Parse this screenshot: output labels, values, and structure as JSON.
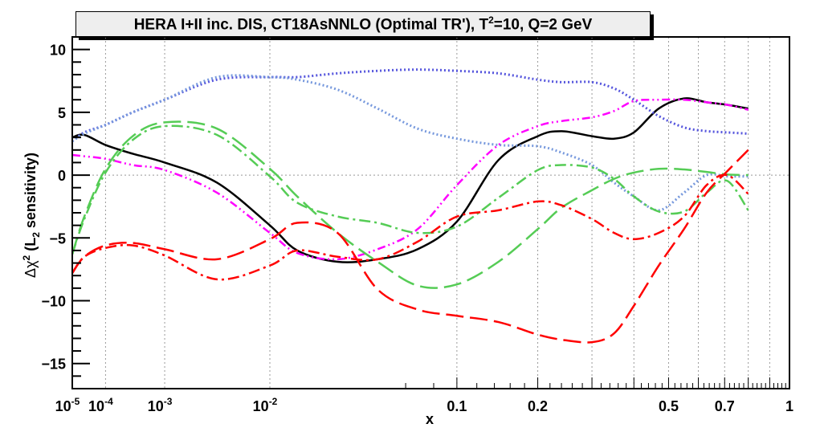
{
  "chart_data": {
    "type": "line",
    "title": "HERA I+II inc. DIS, CT18AsNNLO (Optimal TR'), T^2=10, Q=2 GeV",
    "title_parts": {
      "pre": "HERA I+II inc. DIS, CT18AsNNLO (Optimal TR'), T",
      "sup": "2",
      "post": "=10, Q=2 GeV"
    },
    "xlabel": "x",
    "ylabel": "Δχ² (L₂ sensitivity)",
    "ylabel_parts": {
      "delta_chi": "Δχ",
      "sup": "2",
      "paren": " (L",
      "sub": "2",
      "rest": " sensitivity)"
    },
    "x_scale": "x^0.25",
    "xlim": [
      1e-05,
      1
    ],
    "ylim": [
      -17,
      11
    ],
    "grid": true,
    "x_ticks": [
      {
        "value": 1e-05,
        "base": "10",
        "exp": "-5"
      },
      {
        "value": 0.0001,
        "base": "10",
        "exp": "-4"
      },
      {
        "value": 0.001,
        "base": "10",
        "exp": "-3"
      },
      {
        "value": 0.01,
        "base": "10",
        "exp": "-2"
      },
      {
        "value": 0.1,
        "label": "0.1"
      },
      {
        "value": 0.2,
        "label": "0.2"
      },
      {
        "value": 0.5,
        "label": "0.5"
      },
      {
        "value": 0.7,
        "label": "0.7"
      },
      {
        "value": 1,
        "label": "1"
      }
    ],
    "x_grid": [
      0.0001,
      0.001,
      0.01,
      0.1,
      0.2,
      0.3,
      0.4,
      0.5,
      0.6,
      0.7,
      0.8,
      0.9
    ],
    "y_ticks": [
      10,
      5,
      0,
      -5,
      -10,
      -15
    ],
    "y_tick_labels": [
      "10",
      "5",
      "0",
      "−5",
      "−10",
      "−15"
    ],
    "x": [
      1e-05,
      2.7e-05,
      0.0001,
      0.00034,
      0.001,
      0.0037,
      0.01,
      0.0154,
      0.027,
      0.044,
      0.068,
      0.1,
      0.145,
      0.2,
      0.24,
      0.3,
      0.35,
      0.4,
      0.47,
      0.55,
      0.63,
      0.71,
      0.8
    ],
    "series": [
      {
        "name": "black-solid",
        "color": "#000000",
        "style": "solid",
        "values": [
          3.0,
          3.2,
          2.4,
          1.7,
          1.0,
          -0.6,
          -4.0,
          -6.0,
          -6.9,
          -6.7,
          -5.9,
          -3.7,
          1.2,
          3.1,
          3.5,
          3.1,
          2.9,
          3.4,
          5.3,
          6.1,
          5.8,
          5.6,
          5.3
        ]
      },
      {
        "name": "blue-dotted-dark",
        "color": "#5555dd",
        "style": "dotted",
        "values": [
          2.7,
          3.4,
          4.0,
          5.0,
          6.0,
          7.6,
          7.8,
          7.8,
          8.1,
          8.3,
          8.4,
          8.3,
          8.1,
          7.6,
          7.4,
          7.4,
          6.9,
          6.0,
          4.7,
          3.8,
          3.5,
          3.4,
          3.3
        ]
      },
      {
        "name": "blue-dotted-light",
        "color": "#7799dd",
        "style": "dotted",
        "values": [
          2.7,
          3.3,
          4.0,
          5.0,
          6.0,
          7.8,
          7.8,
          7.6,
          6.8,
          5.3,
          3.7,
          2.9,
          2.4,
          2.3,
          1.8,
          0.8,
          -0.6,
          -1.7,
          -2.8,
          -1.4,
          0.0,
          -0.1,
          -0.1
        ]
      },
      {
        "name": "magenta-dash-dot-dot",
        "color": "#ff00ff",
        "style": "dashdotdot",
        "values": [
          1.6,
          1.5,
          1.3,
          0.8,
          0.4,
          -1.4,
          -4.6,
          -6.2,
          -6.7,
          -5.9,
          -4.3,
          -0.8,
          2.4,
          3.9,
          4.3,
          4.6,
          5.1,
          5.9,
          6.0,
          6.0,
          5.8,
          5.6,
          5.2
        ]
      },
      {
        "name": "green-long-dash",
        "color": "#55cc55",
        "style": "longdash",
        "values": [
          -6.3,
          -3.3,
          0.5,
          3.1,
          4.2,
          3.7,
          0.5,
          -1.7,
          -4.6,
          -6.9,
          -8.8,
          -8.7,
          -6.9,
          -4.3,
          -2.6,
          -1.2,
          -0.3,
          0.2,
          0.5,
          0.45,
          0.25,
          0.05,
          0.0
        ]
      },
      {
        "name": "green-dash-dot",
        "color": "#55cc55",
        "style": "dashdot",
        "values": [
          -6.3,
          -3.5,
          0.2,
          2.8,
          3.9,
          3.2,
          -0.1,
          -2.2,
          -3.3,
          -3.8,
          -4.6,
          -4.1,
          -1.8,
          0.4,
          0.8,
          0.6,
          -0.3,
          -1.7,
          -2.9,
          -2.9,
          -1.4,
          -0.45,
          -2.8
        ]
      },
      {
        "name": "red-long-dash",
        "color": "#ff0000",
        "style": "longdash",
        "values": [
          -7.8,
          -6.5,
          -5.6,
          -5.4,
          -5.9,
          -6.7,
          -5.1,
          -3.8,
          -4.6,
          -9.1,
          -10.7,
          -11.2,
          -11.7,
          -12.7,
          -13.1,
          -13.3,
          -12.6,
          -10.4,
          -7.2,
          -4.3,
          -1.4,
          0.3,
          2.0
        ]
      },
      {
        "name": "red-dash-dot",
        "color": "#ff0000",
        "style": "dashdot",
        "values": [
          -7.8,
          -6.5,
          -5.8,
          -5.6,
          -6.4,
          -8.3,
          -7.2,
          -6.0,
          -6.5,
          -6.7,
          -5.3,
          -3.3,
          -2.8,
          -2.1,
          -2.4,
          -3.5,
          -4.6,
          -5.1,
          -4.6,
          -3.3,
          -0.8,
          0.0,
          -1.5
        ]
      }
    ]
  }
}
